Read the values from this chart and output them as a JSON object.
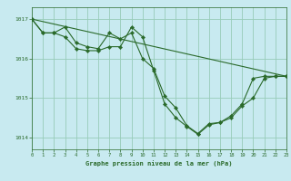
{
  "title": "Graphe pression niveau de la mer (hPa)",
  "background_color": "#c8eaf0",
  "grid_color": "#98ccb8",
  "line_color": "#2a6a2a",
  "xlim": [
    0,
    23
  ],
  "ylim": [
    1013.7,
    1017.3
  ],
  "yticks": [
    1014,
    1015,
    1016,
    1017
  ],
  "xticks": [
    0,
    1,
    2,
    3,
    4,
    5,
    6,
    7,
    8,
    9,
    10,
    11,
    12,
    13,
    14,
    15,
    16,
    17,
    18,
    19,
    20,
    21,
    22,
    23
  ],
  "series": [
    {
      "x": [
        0,
        1,
        2,
        3,
        4,
        5,
        6,
        7,
        8,
        9,
        10,
        11,
        12,
        13,
        14,
        15,
        16,
        17,
        18,
        19,
        20,
        21,
        22,
        23
      ],
      "y": [
        1017.0,
        1016.65,
        1016.65,
        1016.8,
        1016.4,
        1016.3,
        1016.25,
        1016.65,
        1016.5,
        1016.65,
        1016.0,
        1015.75,
        1015.05,
        1014.75,
        1014.3,
        1014.1,
        1014.35,
        1014.38,
        1014.55,
        1014.85,
        1015.5,
        1015.55,
        1015.55,
        1015.55
      ]
    },
    {
      "x": [
        0,
        1,
        2,
        3,
        4,
        5,
        6,
        7,
        8,
        9,
        10,
        11,
        12,
        13,
        14,
        15,
        16,
        17,
        18,
        19,
        20,
        21,
        22,
        23
      ],
      "y": [
        1017.0,
        1016.65,
        1016.65,
        1016.55,
        1016.25,
        1016.2,
        1016.2,
        1016.3,
        1016.3,
        1016.8,
        1016.55,
        1015.7,
        1014.85,
        1014.5,
        1014.28,
        1014.08,
        1014.32,
        1014.38,
        1014.5,
        1014.8,
        1015.0,
        1015.5,
        1015.55,
        1015.55
      ]
    },
    {
      "x": [
        0,
        23
      ],
      "y": [
        1017.0,
        1015.55
      ]
    }
  ]
}
